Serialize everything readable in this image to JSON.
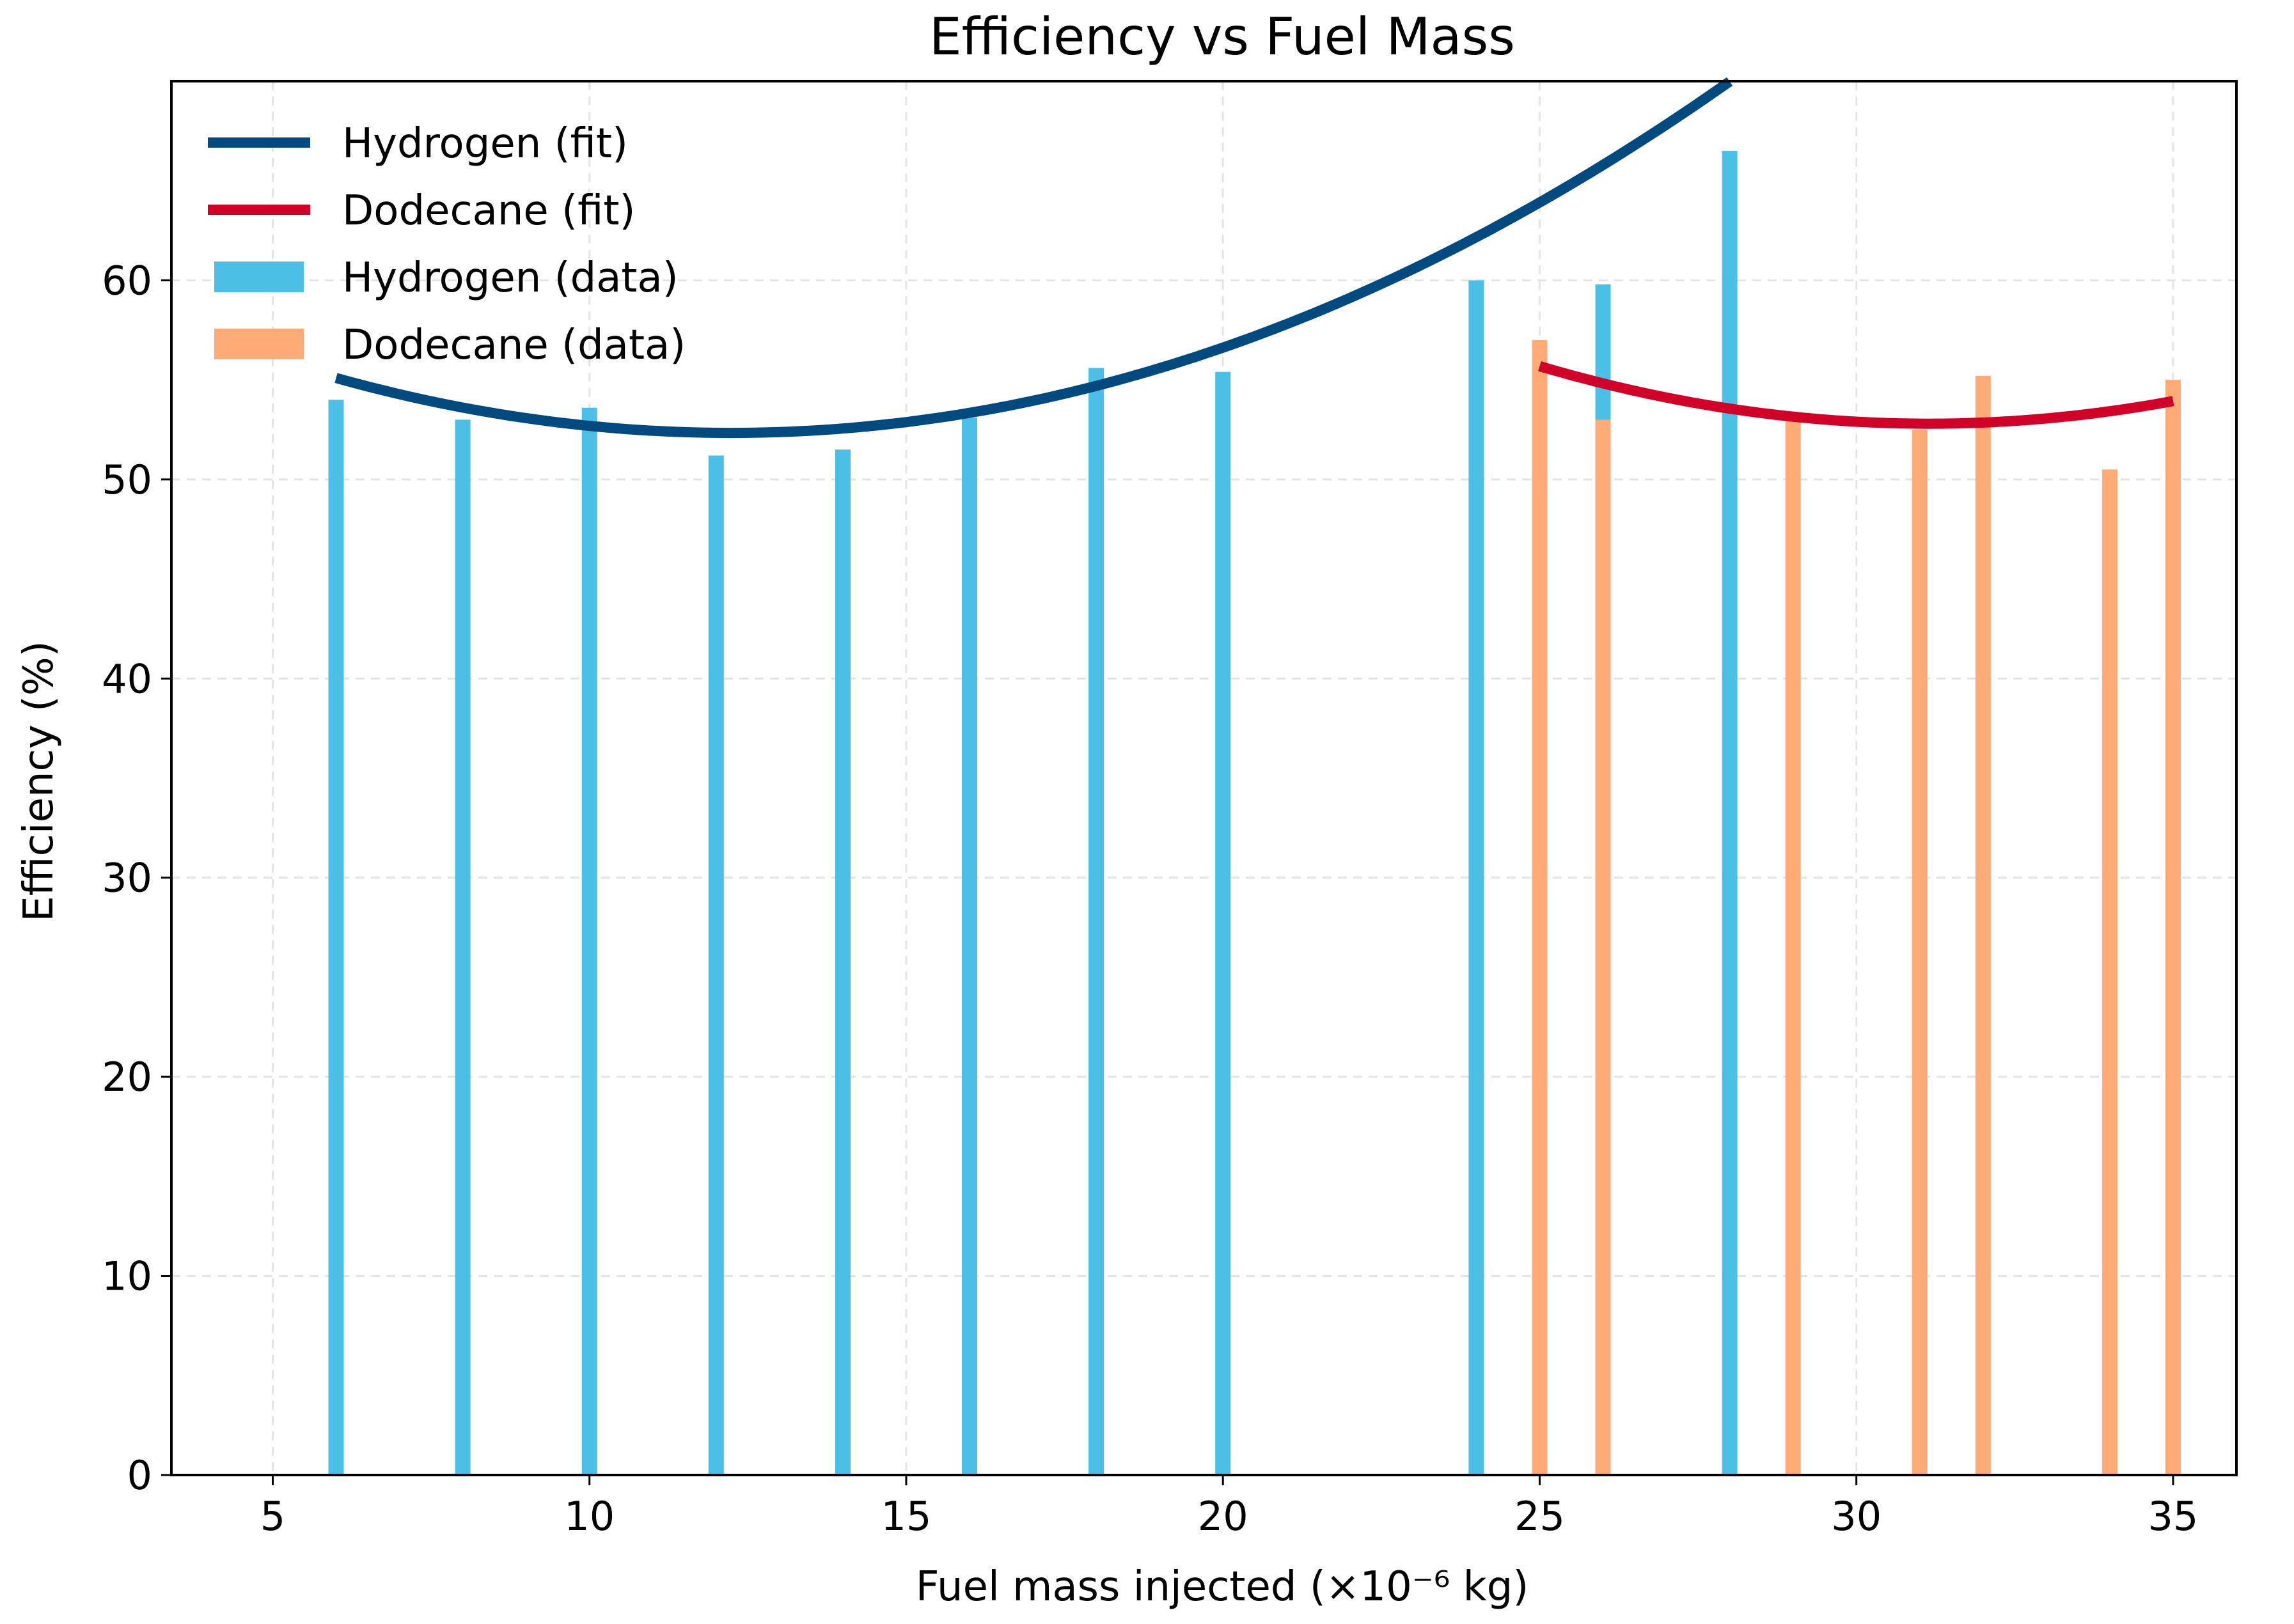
{
  "chart_data": {
    "type": "bar+line",
    "title": "Efficiency vs Fuel Mass",
    "xlabel": "Fuel mass injected (×10⁻⁶ kg)",
    "ylabel": "Efficiency (%)",
    "xlim": [
      3.4,
      36.0
    ],
    "ylim": [
      0,
      70
    ],
    "xticks": [
      5,
      10,
      15,
      20,
      25,
      30,
      35
    ],
    "yticks": [
      0,
      10,
      20,
      30,
      40,
      50,
      60
    ],
    "grid": true,
    "legend_position": "top-left",
    "series": [
      {
        "name": "Hydrogen (data)",
        "kind": "bar",
        "color": "#4bbfe6",
        "x": [
          6,
          8,
          10,
          12,
          14,
          16,
          18,
          20,
          24,
          26,
          28
        ],
        "values": [
          54.0,
          53.0,
          53.6,
          51.2,
          51.5,
          53.1,
          55.6,
          55.4,
          60.0,
          59.8,
          66.5
        ]
      },
      {
        "name": "Dodecane (data)",
        "kind": "bar",
        "color": "#ffab78",
        "x": [
          25,
          26,
          29,
          31,
          32,
          34,
          35
        ],
        "values": [
          57.0,
          53.0,
          53.0,
          52.5,
          55.2,
          50.5,
          55.0
        ]
      },
      {
        "name": "Hydrogen (fit)",
        "kind": "line",
        "color": "#004a7f",
        "x_range": [
          6,
          28
        ],
        "coefficients": [
          0.071,
          -1.737,
          62.96
        ]
      },
      {
        "name": "Dodecane (fit)",
        "kind": "line",
        "color": "#d00028",
        "x_range": [
          25,
          35
        ],
        "coefficients": [
          0.0765,
          -4.765,
          127.0
        ]
      }
    ],
    "legend": [
      {
        "label": "Hydrogen (fit)",
        "kind": "line",
        "color": "#004a7f"
      },
      {
        "label": "Dodecane (fit)",
        "kind": "line",
        "color": "#d00028"
      },
      {
        "label": "Hydrogen (data)",
        "kind": "patch",
        "color": "#4bbfe6"
      },
      {
        "label": "Dodecane (data)",
        "kind": "patch",
        "color": "#ffab78"
      }
    ]
  }
}
